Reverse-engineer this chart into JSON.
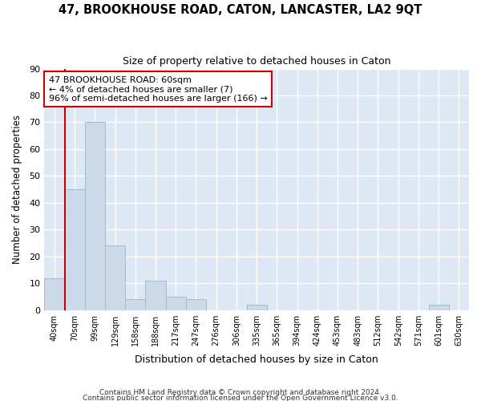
{
  "title": "47, BROOKHOUSE ROAD, CATON, LANCASTER, LA2 9QT",
  "subtitle": "Size of property relative to detached houses in Caton",
  "xlabel": "Distribution of detached houses by size in Caton",
  "ylabel": "Number of detached properties",
  "bar_color": "#ccd9e8",
  "bar_edge_color": "#a0bcd0",
  "background_color": "#dde8f4",
  "grid_color": "#ffffff",
  "bins": [
    "40sqm",
    "70sqm",
    "99sqm",
    "129sqm",
    "158sqm",
    "188sqm",
    "217sqm",
    "247sqm",
    "276sqm",
    "306sqm",
    "335sqm",
    "365sqm",
    "394sqm",
    "424sqm",
    "453sqm",
    "483sqm",
    "512sqm",
    "542sqm",
    "571sqm",
    "601sqm",
    "630sqm"
  ],
  "values": [
    12,
    45,
    70,
    24,
    4,
    11,
    5,
    4,
    0,
    0,
    2,
    0,
    0,
    0,
    0,
    0,
    0,
    0,
    0,
    2,
    0
  ],
  "property_line_x": 0.5,
  "property_line_color": "#cc0000",
  "annotation_line1": "47 BROOKHOUSE ROAD: 60sqm",
  "annotation_line2": "← 4% of detached houses are smaller (7)",
  "annotation_line3": "96% of semi-detached houses are larger (166) →",
  "annotation_box_color": "#ffffff",
  "annotation_box_edge_color": "#cc0000",
  "ylim": [
    0,
    90
  ],
  "yticks": [
    0,
    10,
    20,
    30,
    40,
    50,
    60,
    70,
    80,
    90
  ],
  "footer1": "Contains HM Land Registry data © Crown copyright and database right 2024.",
  "footer2": "Contains public sector information licensed under the Open Government Licence v3.0.",
  "fig_bg": "#ffffff"
}
